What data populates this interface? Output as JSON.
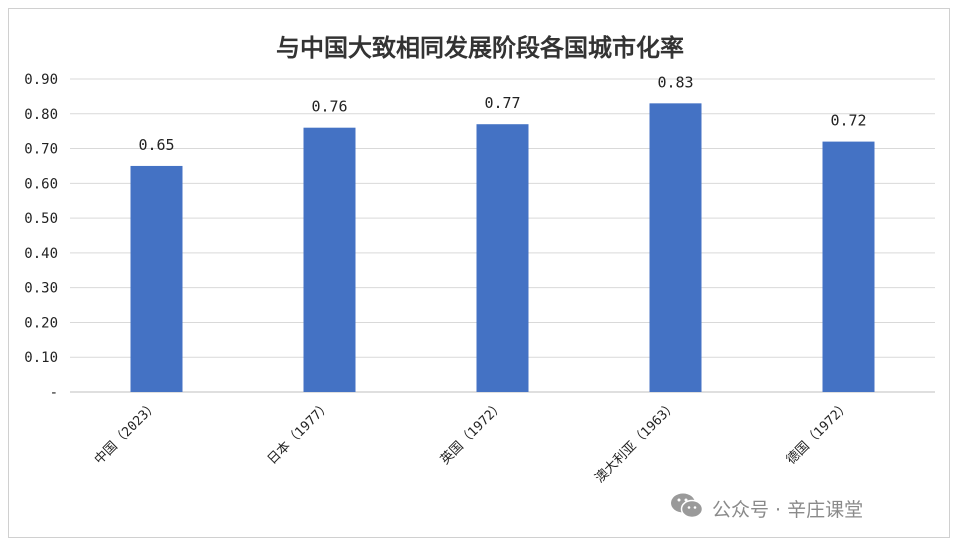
{
  "chart_data": {
    "type": "bar",
    "title": "与中国大致相同发展阶段各国城市化率",
    "categories": [
      "中国（2023）",
      "日本（1977）",
      "英国（1972）",
      "澳大利亚（1963）",
      "德国（1972）"
    ],
    "values": [
      0.65,
      0.76,
      0.77,
      0.83,
      0.72
    ],
    "data_labels": [
      "0.65",
      "0.76",
      "0.77",
      "0.83",
      "0.72"
    ],
    "y_ticks": [
      "-",
      "0.10",
      "0.20",
      "0.30",
      "0.40",
      "0.50",
      "0.60",
      "0.70",
      "0.80",
      "0.90"
    ],
    "ylim": [
      0,
      0.9
    ],
    "xlabel": "",
    "ylabel": "",
    "grid": true,
    "bar_color": "#4472C4"
  },
  "watermark": {
    "icon": "wechat-icon",
    "text": "公众号 · 辛庄课堂"
  }
}
